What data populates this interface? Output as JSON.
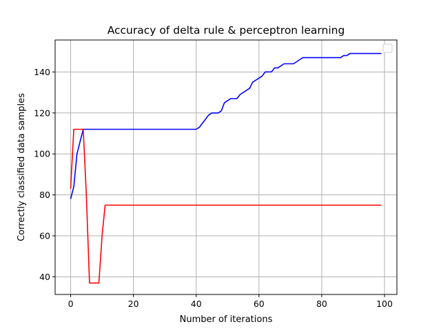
{
  "chart_data": {
    "type": "line",
    "title": "Accuracy of delta rule & perceptron learning",
    "xlabel": "Number of iterations",
    "ylabel": "Correctly classified data samples",
    "xlim": [
      -4.95,
      103.95
    ],
    "ylim": [
      31.4,
      155.6
    ],
    "xticks": [
      0,
      20,
      40,
      60,
      80,
      100
    ],
    "yticks": [
      40,
      60,
      80,
      100,
      120,
      140
    ],
    "grid": true,
    "legend": {
      "placement": "top-right",
      "entries": []
    },
    "series": [
      {
        "color": "#0000ff",
        "x": [
          0,
          1,
          2,
          3,
          4,
          5,
          10,
          20,
          30,
          39,
          40,
          41,
          42,
          43,
          44,
          45,
          46,
          47,
          48,
          49,
          50,
          51,
          52,
          53,
          54,
          55,
          56,
          57,
          58,
          59,
          60,
          61,
          62,
          63,
          64,
          65,
          66,
          67,
          68,
          69,
          70,
          71,
          72,
          73,
          74,
          75,
          80,
          86,
          87,
          88,
          89,
          90,
          95,
          99
        ],
        "y": [
          78,
          84,
          100,
          106,
          112,
          112,
          112,
          112,
          112,
          112,
          112,
          113,
          115,
          117,
          119,
          120,
          120,
          120,
          121,
          125,
          126,
          127,
          127,
          127,
          129,
          130,
          131,
          132,
          135,
          136,
          137,
          138,
          140,
          140,
          140,
          142,
          142,
          143,
          144,
          144,
          144,
          144,
          145,
          146,
          147,
          147,
          147,
          147,
          148,
          148,
          149,
          149,
          149,
          149
        ]
      },
      {
        "color": "#ff0000",
        "x": [
          0,
          1,
          2,
          3,
          4,
          5,
          6,
          7,
          8,
          9,
          10,
          11,
          12,
          20,
          40,
          60,
          80,
          99
        ],
        "y": [
          83,
          112,
          112,
          112,
          112,
          80,
          37,
          37,
          37,
          37,
          60,
          75,
          75,
          75,
          75,
          75,
          75,
          75
        ]
      }
    ]
  }
}
